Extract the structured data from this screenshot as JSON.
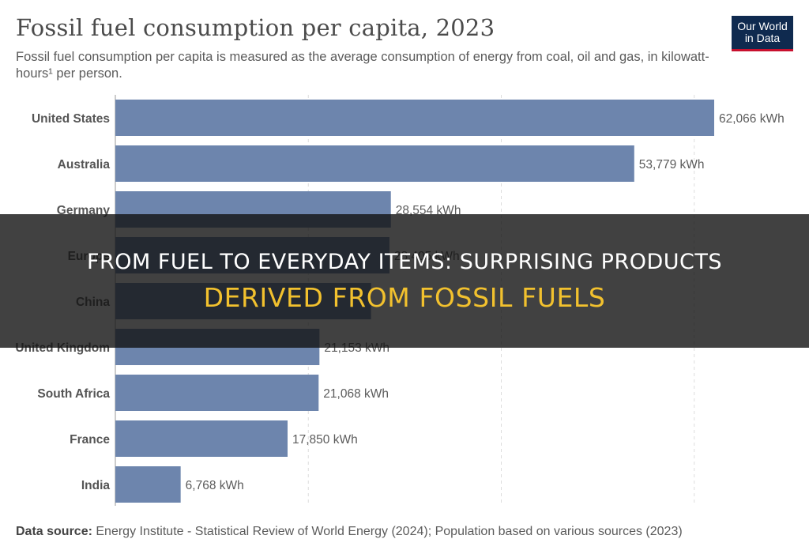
{
  "header": {
    "title": "Fossil fuel consumption per capita, 2023",
    "subtitle": "Fossil fuel consumption per capita is measured as the average consumption of energy from coal, oil and gas, in kilowatt-hours¹ per person.",
    "logo_line1": "Our World",
    "logo_line2": "in Data"
  },
  "footer": {
    "source_label": "Data source:",
    "source_text": "Energy Institute - Statistical Review of World Energy (2024); Population based on various sources (2023)"
  },
  "banner": {
    "line1": "From Fuel to Everyday Items: Surprising Products",
    "line2": "Derived from Fossil Fuels"
  },
  "colors": {
    "bar": "#6d85ad",
    "banner_accent": "#f2c12e",
    "logo_bg": "#0f2a4f",
    "logo_accent": "#c8102e"
  },
  "chart_data": {
    "type": "bar",
    "orientation": "horizontal",
    "title": "Fossil fuel consumption per capita, 2023",
    "unit": "kWh",
    "categories": [
      "United States",
      "Australia",
      "Germany",
      "Europe",
      "China",
      "United Kingdom",
      "South Africa",
      "France",
      "India"
    ],
    "values": [
      62066,
      53779,
      28554,
      28405,
      26500,
      21153,
      21068,
      17850,
      6768
    ],
    "value_labels": [
      "62,066 kWh",
      "53,779 kWh",
      "28,554 kWh",
      "28,405 kWh",
      "",
      "21,153 kWh",
      "21,068 kWh",
      "17,850 kWh",
      "6,768 kWh"
    ],
    "xlim": [
      0,
      64000
    ],
    "gridlines": [
      0,
      20000,
      40000,
      60000
    ],
    "grid": true,
    "legend": "none"
  }
}
